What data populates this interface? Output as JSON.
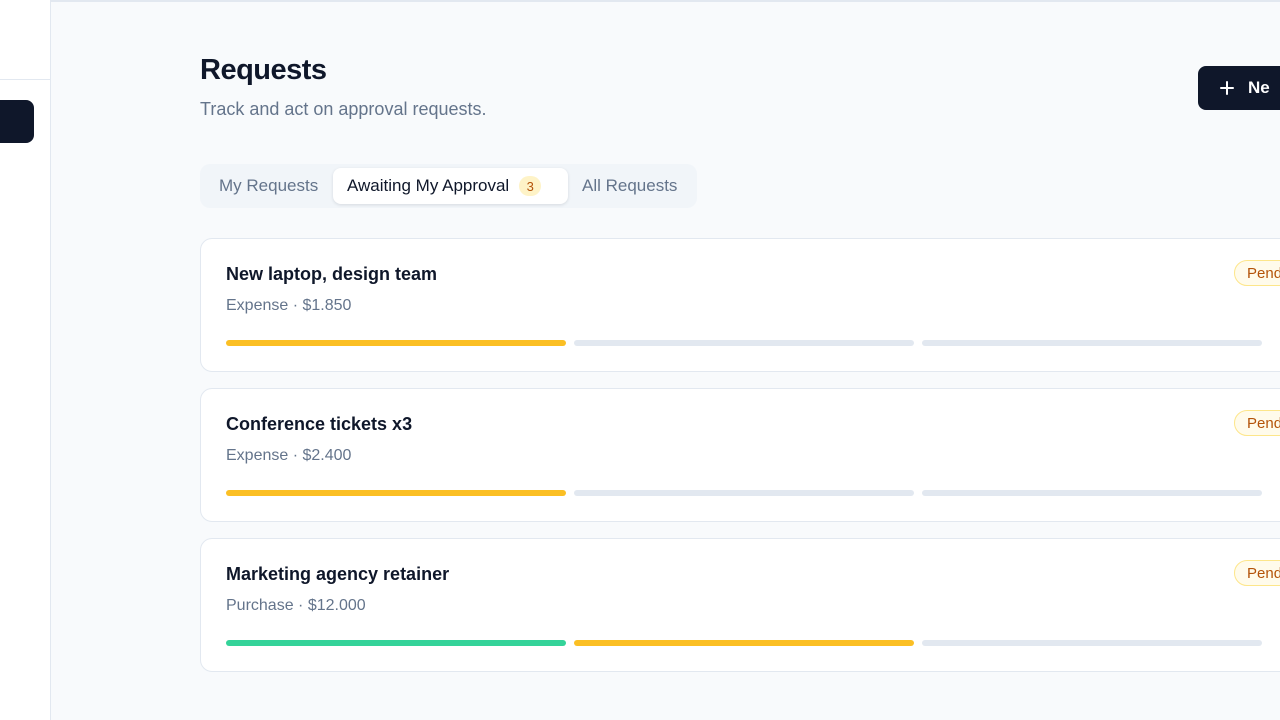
{
  "header": {
    "title": "Requests",
    "subtitle": "Track and act on approval requests.",
    "new_button_label": "Ne"
  },
  "tabs": [
    {
      "label": "My Requests"
    },
    {
      "label": "Awaiting My Approval",
      "badge": "3",
      "active": true
    },
    {
      "label": "All Requests"
    }
  ],
  "colors": {
    "primary": "#0f172a",
    "step_pending": "#fbbf24",
    "step_done": "#34d399",
    "step_idle": "#e2e8f0",
    "status_pending": "#b45309"
  },
  "requests": [
    {
      "title": "New laptop, design team",
      "meta": "Expense · $1.850",
      "status": "Pend",
      "steps": [
        "pending",
        "idle",
        "idle"
      ]
    },
    {
      "title": "Conference tickets x3",
      "meta": "Expense · $2.400",
      "status": "Pend",
      "steps": [
        "pending",
        "idle",
        "idle"
      ]
    },
    {
      "title": "Marketing agency retainer",
      "meta": "Purchase · $12.000",
      "status": "Pend",
      "steps": [
        "done",
        "pending",
        "idle"
      ]
    }
  ]
}
